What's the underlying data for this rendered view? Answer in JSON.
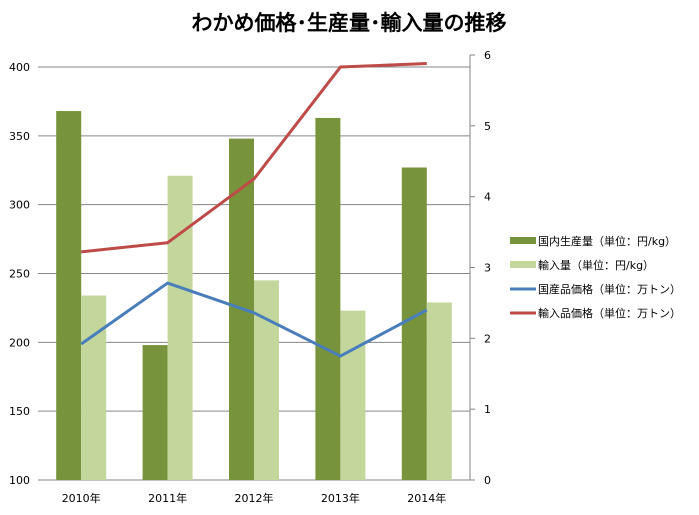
{
  "chart_data": {
    "type": "bar+line",
    "title": "わかめ価格･生産量･輸入量の推移",
    "categories": [
      "2010年",
      "2011年",
      "2012年",
      "2013年",
      "2014年"
    ],
    "left_axis": {
      "ylim": [
        100,
        400
      ],
      "ticks": [
        100,
        150,
        200,
        250,
        300,
        350,
        400
      ]
    },
    "right_axis": {
      "ylim": [
        0,
        6
      ],
      "ticks": [
        0,
        1,
        2,
        3,
        4,
        5,
        6
      ]
    },
    "grid": true,
    "legend_position": "right",
    "series": [
      {
        "name": "国内生産量（単位：円/kg）",
        "type": "bar",
        "axis": "left",
        "color": "#77933c",
        "values": [
          368,
          198,
          348,
          363,
          327
        ]
      },
      {
        "name": "輸入量（単位：円/kg）",
        "type": "bar",
        "axis": "left",
        "color": "#c3d69b",
        "values": [
          234,
          321,
          245,
          223,
          229
        ]
      },
      {
        "name": "国産品価格（単位：万トン）",
        "type": "line",
        "axis": "right",
        "color": "#4a7ebb",
        "values": [
          1.92,
          2.78,
          2.36,
          1.75,
          2.4
        ]
      },
      {
        "name": "輸入品価格（単位：万トン）",
        "type": "line",
        "axis": "right",
        "color": "#be4b48",
        "values": [
          3.22,
          3.35,
          4.25,
          5.83,
          5.88
        ]
      }
    ]
  }
}
